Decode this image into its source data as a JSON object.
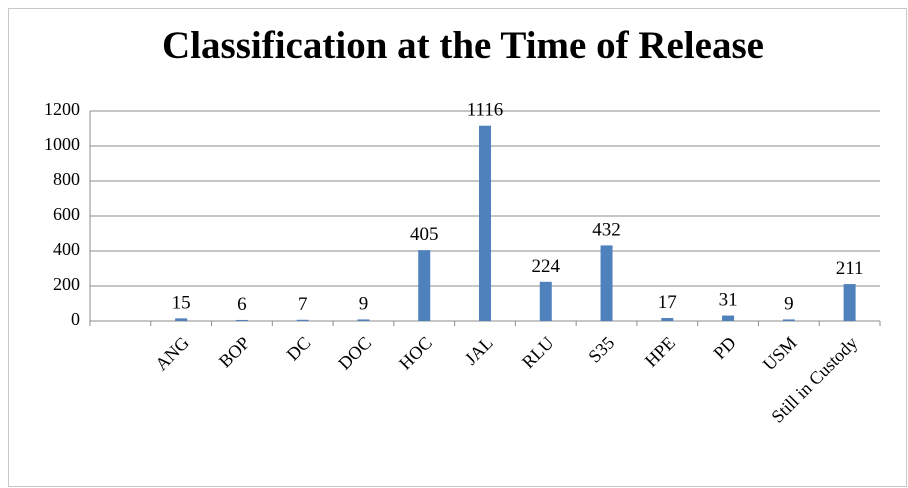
{
  "chart_data": {
    "type": "bar",
    "title": "Classification at the Time of Release",
    "categories": [
      null,
      "ANG",
      "BOP",
      "DC",
      "DOC",
      "HOC",
      "JAL",
      "RLU",
      "S35",
      "HPE",
      "PD",
      "USM",
      "Still in Custody"
    ],
    "values": [
      null,
      15,
      6,
      7,
      9,
      405,
      1116,
      224,
      432,
      17,
      31,
      9,
      211
    ],
    "color": "#4f81bd",
    "ylim": [
      0,
      1200
    ],
    "yticks": [
      0,
      200,
      400,
      600,
      800,
      1000,
      1200
    ],
    "grid": true
  }
}
